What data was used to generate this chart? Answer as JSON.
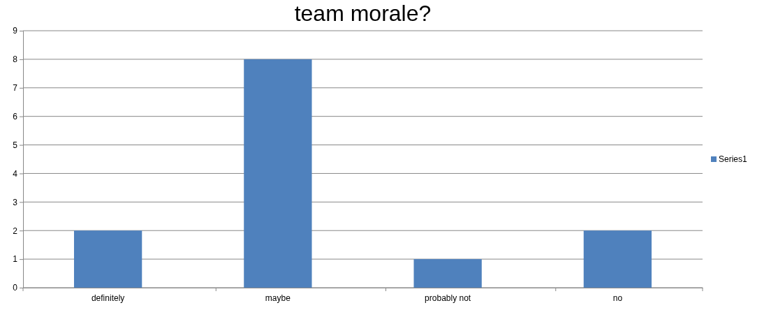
{
  "chart_data": {
    "type": "bar",
    "title": "team morale?",
    "categories": [
      "definitely",
      "maybe",
      "probably not",
      "no"
    ],
    "series": [
      {
        "name": "Series1",
        "color": "#4f81bd",
        "values": [
          2,
          8,
          1,
          2
        ]
      }
    ],
    "ylim": [
      0,
      9
    ],
    "yticks": [
      0,
      1,
      2,
      3,
      4,
      5,
      6,
      7,
      8,
      9
    ],
    "grid": "y",
    "legend": "right"
  }
}
